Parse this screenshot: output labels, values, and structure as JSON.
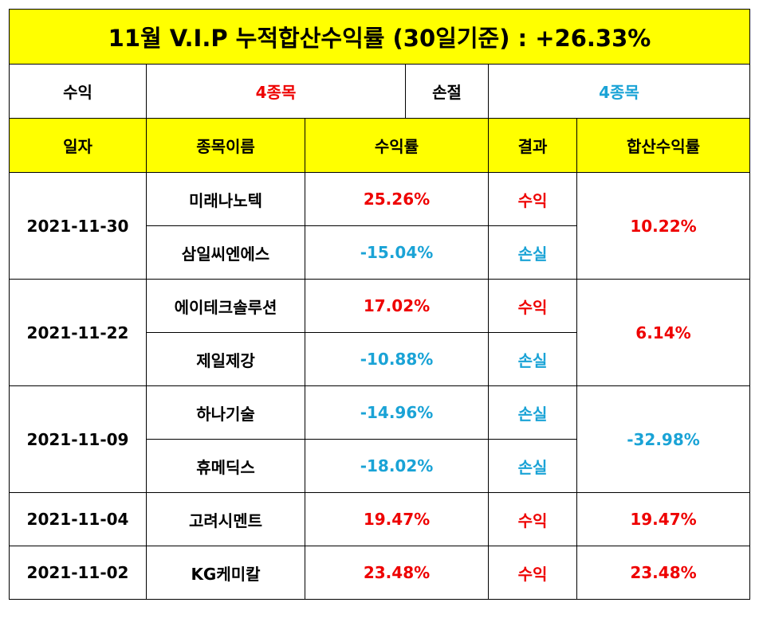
{
  "title": "11월 V.I.P 누적합산수익률 (30일기준) : +26.33%",
  "summary": {
    "profit_label": "수익",
    "profit_count": "4종목",
    "loss_label": "손절",
    "loss_count": "4종목"
  },
  "headers": [
    "일자",
    "종목이름",
    "수익률",
    "결과",
    "합산수익률"
  ],
  "groups": [
    {
      "date": "2021-11-30",
      "total": "10.22%",
      "total_color": "red",
      "rows": [
        {
          "name": "미래나노텍",
          "rate": "25.26%",
          "result": "수익",
          "color": "red"
        },
        {
          "name": "삼일씨엔에스",
          "rate": "-15.04%",
          "result": "손실",
          "color": "blue"
        }
      ]
    },
    {
      "date": "2021-11-22",
      "total": "6.14%",
      "total_color": "red",
      "rows": [
        {
          "name": "에이테크솔루션",
          "rate": "17.02%",
          "result": "수익",
          "color": "red"
        },
        {
          "name": "제일제강",
          "rate": "-10.88%",
          "result": "손실",
          "color": "blue"
        }
      ]
    },
    {
      "date": "2021-11-09",
      "total": "-32.98%",
      "total_color": "blue",
      "rows": [
        {
          "name": "하나기술",
          "rate": "-14.96%",
          "result": "손실",
          "color": "blue"
        },
        {
          "name": "휴메딕스",
          "rate": "-18.02%",
          "result": "손실",
          "color": "blue"
        }
      ]
    },
    {
      "date": "2021-11-04",
      "total": "19.47%",
      "total_color": "red",
      "rows": [
        {
          "name": "고려시멘트",
          "rate": "19.47%",
          "result": "수익",
          "color": "red"
        }
      ]
    },
    {
      "date": "2021-11-02",
      "total": "23.48%",
      "total_color": "red",
      "rows": [
        {
          "name": "KG케미칼",
          "rate": "23.48%",
          "result": "수익",
          "color": "red"
        }
      ]
    }
  ],
  "colors": {
    "header_bg": "#ffff00",
    "profit": "#ee0000",
    "loss": "#1aa3d6",
    "border": "#000000"
  }
}
